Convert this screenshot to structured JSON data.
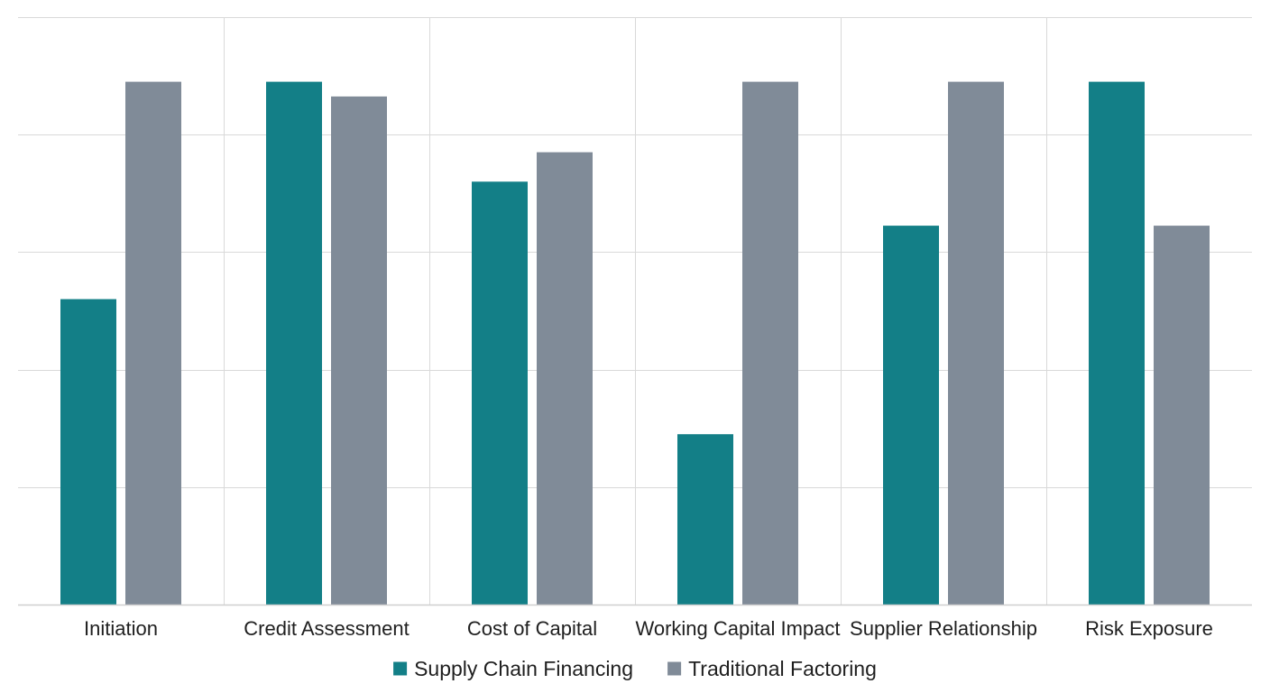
{
  "chart_data": {
    "type": "bar",
    "categories": [
      "Initiation",
      "Credit Assessment",
      "Cost of Capital",
      "Working Capital Impact",
      "Supplier Relationship",
      "Risk Exposure"
    ],
    "series": [
      {
        "name": "Supply Chain Financing",
        "color": "#137f87",
        "values": [
          5.2,
          8.9,
          7.2,
          2.9,
          6.45,
          8.9
        ]
      },
      {
        "name": "Traditional Factoring",
        "color": "#808b98",
        "values": [
          8.9,
          8.65,
          7.7,
          8.9,
          8.9,
          6.45
        ]
      }
    ],
    "ylim": [
      0,
      10
    ],
    "grid": true,
    "legend": "bottom-center",
    "title": "",
    "xlabel": "",
    "ylabel": ""
  }
}
